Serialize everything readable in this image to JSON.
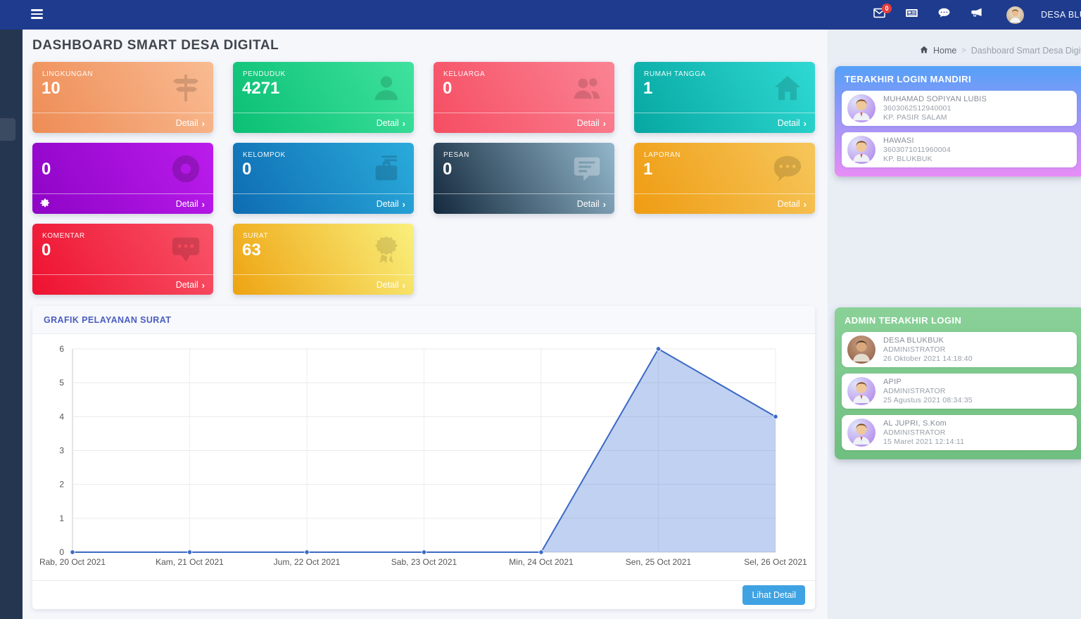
{
  "colors": {
    "navbar_bg": "#1e3b8e",
    "sidebar_bg": "#253750",
    "badge_red": "#e53e3e",
    "button_bg": "#3fa3e3",
    "panel_mandiri_gradient": [
      "#55a0f8",
      "#e78df6"
    ],
    "panel_admin_gradient": [
      "#8ad198",
      "#6fbf80"
    ]
  },
  "navbar": {
    "user_name": "DESA BLUKBUK",
    "mail_badge": "0"
  },
  "page": {
    "title": "DASHBOARD SMART DESA DIGITAL",
    "breadcrumb": {
      "home": "Home",
      "separator": ">",
      "current": "Dashboard Smart Desa Digital"
    }
  },
  "stat_cards": [
    {
      "label": "LINGKUNGAN",
      "value": "10",
      "detail_label": "Detail",
      "icon": "signpost-icon",
      "gradient": [
        "#ee8c55",
        "#f9bb92"
      ],
      "icon_tint": "rgba(0,0,0,0.15)"
    },
    {
      "label": "PENDUDUK",
      "value": "4271",
      "detail_label": "Detail",
      "icon": "person-icon",
      "gradient": [
        "#0abf74",
        "#3fe29e"
      ],
      "icon_tint": "rgba(0,0,0,0.14)"
    },
    {
      "label": "KELUARGA",
      "value": "0",
      "detail_label": "Detail",
      "icon": "people-icon",
      "gradient": [
        "#f64d62",
        "#fa8494"
      ],
      "icon_tint": "rgba(0,0,0,0.14)"
    },
    {
      "label": "RUMAH TANGGA",
      "value": "1",
      "detail_label": "Detail",
      "icon": "home-icon",
      "gradient": [
        "#07a7a1",
        "#2fd9d3"
      ],
      "icon_tint": "rgba(0,0,0,0.14)"
    },
    {
      "label": "",
      "value": "0",
      "detail_label": "Detail",
      "icon": "lifering-icon",
      "gradient": [
        "#8e04c6",
        "#bb1cec"
      ],
      "icon_tint": "rgba(0,0,0,0.18)",
      "footer_icon": "gear-icon"
    },
    {
      "label": "KELOMPOK",
      "value": "0",
      "detail_label": "Detail",
      "icon": "briefcase-icon",
      "gradient": [
        "#0e6cb2",
        "#2aabdb"
      ],
      "icon_tint": "rgba(0,0,0,0.16)"
    },
    {
      "label": "PESAN",
      "value": "0",
      "detail_label": "Detail",
      "icon": "message-icon",
      "gradient": [
        "#14293d",
        "#93b7cb"
      ],
      "icon_tint": "rgba(255,255,255,0.30)"
    },
    {
      "label": "LAPORAN",
      "value": "1",
      "detail_label": "Detail",
      "icon": "chat-dots-icon",
      "gradient": [
        "#ef9c12",
        "#f6c65b"
      ],
      "icon_tint": "rgba(0,0,0,0.14)"
    },
    {
      "label": "KOMENTAR",
      "value": "0",
      "detail_label": "Detail",
      "icon": "comment-dots-icon",
      "gradient": [
        "#ee1130",
        "#f85468"
      ],
      "icon_tint": "rgba(0,0,0,0.15)"
    },
    {
      "label": "SURAT",
      "value": "63",
      "detail_label": "Detail",
      "icon": "certificate-icon",
      "gradient": [
        "#eea312",
        "#f9f07c"
      ],
      "icon_tint": "rgba(0,0,0,0.12)"
    }
  ],
  "chart_card": {
    "button_label": "Lihat Detail"
  },
  "chart_data": {
    "type": "area",
    "title": "GRAFIK PELAYANAN SURAT",
    "categories": [
      "Rab, 20 Oct 2021",
      "Kam, 21 Oct 2021",
      "Jum, 22 Oct 2021",
      "Sab, 23 Oct 2021",
      "Min, 24 Oct 2021",
      "Sen, 25 Oct 2021",
      "Sel, 26 Oct 2021"
    ],
    "values": [
      0,
      0,
      0,
      0,
      0,
      6,
      4
    ],
    "xlabel": "",
    "ylabel": "",
    "ylim": [
      0,
      6
    ],
    "yticks": [
      0,
      1,
      2,
      3,
      4,
      5,
      6
    ],
    "grid": true,
    "legend": "none",
    "line_color": "#3b69c6",
    "fill_color": "rgba(78,124,216,0.35)"
  },
  "login_mandiri": {
    "title": "TERAKHIR LOGIN MANDIRI",
    "items": [
      {
        "name": "MUHAMAD SOPIYAN LUBIS",
        "nik": "3603062512940001",
        "address": "KP. PASIR SALAM",
        "avatar": "boy-avatar"
      },
      {
        "name": "HAWASI",
        "nik": "3603071011960004",
        "address": "KP. BLUKBUK",
        "avatar": "boy-avatar"
      }
    ]
  },
  "admin_login": {
    "title": "ADMIN TERAKHIR LOGIN",
    "items": [
      {
        "name": "DESA BLUKBUK",
        "role": "ADMINISTRATOR",
        "datetime": "26 Oktober 2021 14:18:40",
        "avatar": "photo-avatar"
      },
      {
        "name": "APIP",
        "role": "ADMINISTRATOR",
        "datetime": "25 Agustus 2021 08:34:35",
        "avatar": "boy-avatar"
      },
      {
        "name": "AL JUPRI, S.Kom",
        "role": "ADMINISTRATOR",
        "datetime": "15 Maret 2021 12:14:11",
        "avatar": "boy-avatar"
      }
    ]
  }
}
